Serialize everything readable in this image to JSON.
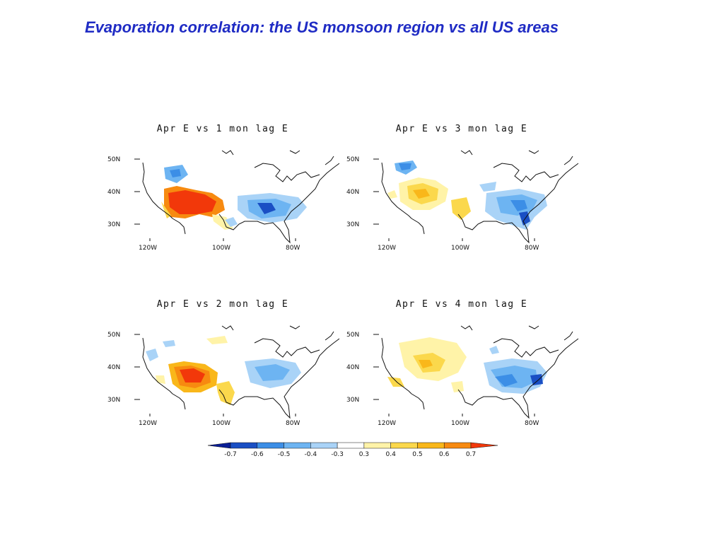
{
  "title": "Evaporation correlation: the US monsoon region vs all US areas",
  "panels": [
    {
      "id": "p1",
      "title": "Apr E vs 1 mon lag E"
    },
    {
      "id": "p3",
      "title": "Apr E vs 3 mon lag E"
    },
    {
      "id": "p2",
      "title": "Apr E vs 2 mon lag E"
    },
    {
      "id": "p4",
      "title": "Apr E vs 4 mon lag E"
    }
  ],
  "axes": {
    "lat_labels": [
      "50N",
      "40N",
      "30N"
    ],
    "lon_labels": [
      "120W",
      "100W",
      "80W"
    ]
  },
  "colorbar": {
    "labels": [
      "-0.7",
      "-0.6",
      "-0.5",
      "-0.4",
      "-0.3",
      "0.3",
      "0.4",
      "0.5",
      "0.6",
      "0.7"
    ],
    "colors": [
      "#0a1e96",
      "#1a4fc4",
      "#3c8ee6",
      "#6db4f2",
      "#a9d3f7",
      "#ffffff",
      "#fff3a8",
      "#fbd84c",
      "#f9b71a",
      "#f78a10",
      "#f2380a"
    ]
  }
}
